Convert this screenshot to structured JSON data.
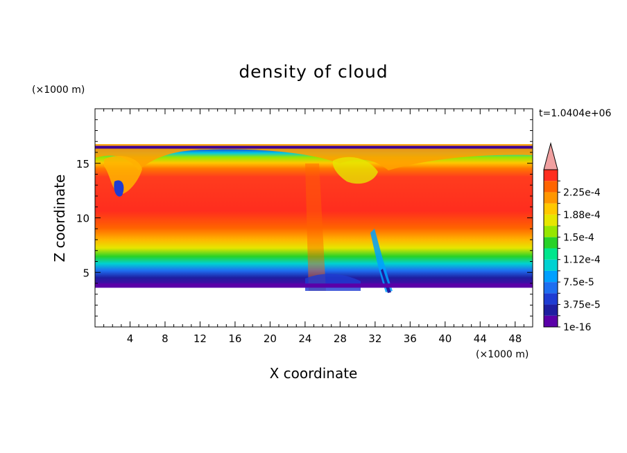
{
  "chart_data": {
    "type": "heatmap",
    "title": "density of cloud",
    "xlabel": "X coordinate",
    "ylabel": "Z coordinate",
    "x_unit": "(×1000 m)",
    "y_unit": "(×1000 m)",
    "time_label": "t=1.0404e+06",
    "xlim": [
      0,
      50
    ],
    "ylim": [
      0,
      20
    ],
    "x_ticks": [
      4,
      8,
      12,
      16,
      20,
      24,
      28,
      32,
      36,
      40,
      44,
      48
    ],
    "y_ticks": [
      5,
      10,
      15
    ],
    "colorbar": {
      "levels": [
        "1e-16",
        "",
        "3.75e-5",
        "",
        "7.5e-5",
        "",
        "1.12e-4",
        "",
        "1.5e-4",
        "",
        "1.88e-4",
        "",
        "2.25e-4",
        ""
      ],
      "colors": [
        "#5a00a8",
        "#1e1ea0",
        "#1e3cd2",
        "#1e6ef0",
        "#00a0ff",
        "#00d2d2",
        "#00e68c",
        "#28d228",
        "#96e600",
        "#e6e600",
        "#ffc800",
        "#ff9600",
        "#ff6400",
        "#ff2d1e"
      ],
      "over_color": "#f0a0a0"
    },
    "field": {
      "cloud_base_z": 3.6,
      "cloud_top_z": 16.6,
      "peak_value": "2.25e-4",
      "features": [
        {
          "x": 3,
          "z": 13.5,
          "desc": "overturning eddy"
        },
        {
          "x": 25,
          "z": 10,
          "desc": "vertical band"
        },
        {
          "x": 29,
          "z": 15,
          "desc": "overturning eddy"
        },
        {
          "x": 33,
          "z": 6,
          "desc": "downdraft"
        }
      ]
    }
  }
}
